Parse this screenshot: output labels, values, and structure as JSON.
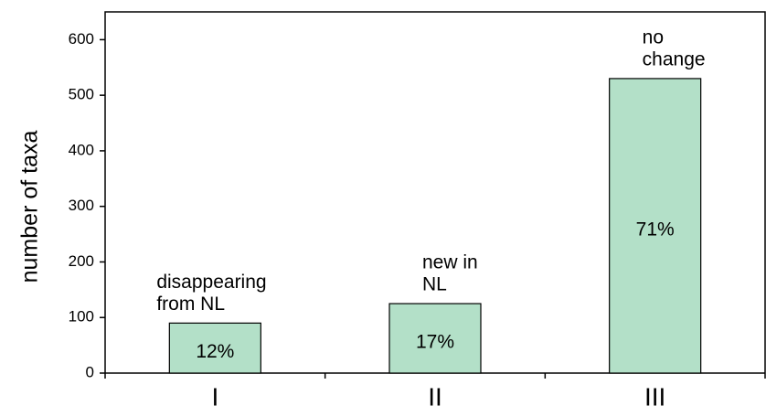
{
  "chart_data": {
    "type": "bar",
    "y_label": "number of taxa",
    "categories": [
      "I",
      "II",
      "III"
    ],
    "values": [
      90,
      125,
      530
    ],
    "color": "#b3e0c8",
    "ylim": [
      0,
      650
    ],
    "yticks": [
      0,
      100,
      200,
      300,
      400,
      500,
      600
    ],
    "shares": [
      "12%",
      "17%",
      "71%"
    ],
    "notes": [
      [
        "disappearing",
        "from NL"
      ],
      [
        "new in",
        "NL"
      ],
      [
        "no",
        "change"
      ]
    ],
    "grid": false
  }
}
